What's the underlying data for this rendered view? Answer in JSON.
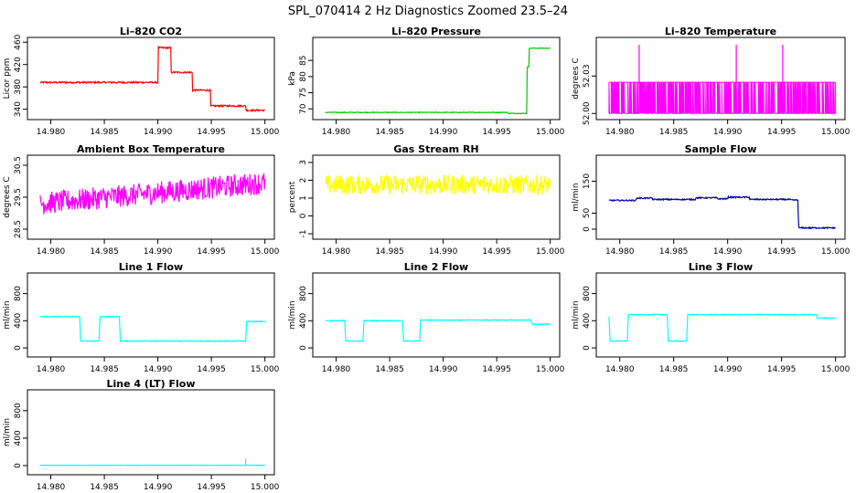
{
  "title": "SPL_070414  2 Hz Diagnostics Zoomed 23.5–24",
  "chart_data": [
    {
      "type": "line",
      "title": "Li–820 CO2",
      "ylabel": "Licor ppm",
      "color": "#ff0000",
      "xlim": [
        14.9785,
        15.0002
      ],
      "xticks": [
        "14.980",
        "14.985",
        "14.990",
        "14.995",
        "15.000"
      ],
      "ylim": [
        328,
        462
      ],
      "yticks": [
        "340",
        "380",
        "420",
        "460"
      ],
      "noise": 1.5,
      "steps": [
        [
          14.979,
          388
        ],
        [
          14.99,
          450
        ],
        [
          14.9912,
          406
        ],
        [
          14.9932,
          374
        ],
        [
          14.9949,
          346
        ],
        [
          14.9982,
          338
        ],
        [
          15.0,
          338
        ]
      ]
    },
    {
      "type": "line",
      "title": "Li–820 Pressure",
      "ylabel": "kPa",
      "color": "#00cc00",
      "xlim": [
        14.9785,
        15.0002
      ],
      "xticks": [
        "14.980",
        "14.985",
        "14.990",
        "14.995",
        "15.000"
      ],
      "ylim": [
        67.8,
        91.0
      ],
      "yticks": [
        "70",
        "75",
        "80",
        "85"
      ],
      "noise": 0.1,
      "steps": [
        [
          14.979,
          68.9
        ],
        [
          14.996,
          68.6
        ],
        [
          14.9978,
          83.0
        ],
        [
          14.998,
          88.8
        ],
        [
          15.0,
          88.8
        ]
      ]
    },
    {
      "type": "line",
      "title": "Li–820 Temperature",
      "ylabel": "degrees C",
      "color": "#ff00ff",
      "xlim": [
        14.9785,
        15.0002
      ],
      "xticks": [
        "14.980",
        "14.985",
        "14.990",
        "14.995",
        "15.000"
      ],
      "ylim": [
        51.998,
        52.058
      ],
      "yticks": [
        "52.00",
        "52.03"
      ],
      "mode": "binary",
      "low": 52.0,
      "high": 52.025,
      "spikes": [
        [
          14.9818,
          52.055
        ],
        [
          14.9908,
          52.055
        ],
        [
          14.9951,
          52.055
        ]
      ],
      "steps": [
        [
          14.979,
          52.0
        ],
        [
          15.0,
          52.0
        ]
      ]
    },
    {
      "type": "line",
      "title": "Ambient Box Temperature",
      "ylabel": "degrees C",
      "color": "#ff00ff",
      "xlim": [
        14.9785,
        15.0002
      ],
      "xticks": [
        "14.980",
        "14.985",
        "14.990",
        "14.995",
        "15.000"
      ],
      "ylim": [
        28.3,
        30.7
      ],
      "yticks": [
        "28.5",
        "29.5",
        "30.5"
      ],
      "noise": 0.35,
      "steps": [
        [
          14.979,
          29.3
        ],
        [
          15.0,
          29.95
        ]
      ]
    },
    {
      "type": "line",
      "title": "Gas Stream RH",
      "ylabel": "percent",
      "color": "#ffff00",
      "xlim": [
        14.9785,
        15.0002
      ],
      "xticks": [
        "14.980",
        "14.985",
        "14.990",
        "14.995",
        "15.000"
      ],
      "ylim": [
        -1.1,
        3.2
      ],
      "yticks": [
        "-1",
        "0",
        "1",
        "2",
        "3"
      ],
      "noise": 0.55,
      "steps": [
        [
          14.979,
          1.75
        ],
        [
          15.0,
          1.75
        ]
      ]
    },
    {
      "type": "line",
      "title": "Sample Flow",
      "ylabel": "ml/min",
      "color": "#0000aa",
      "xlim": [
        14.9785,
        15.0002
      ],
      "xticks": [
        "14.980",
        "14.985",
        "14.990",
        "14.995",
        "15.000"
      ],
      "ylim": [
        -20,
        220
      ],
      "yticks": [
        "0",
        "50",
        "150"
      ],
      "noise": 2,
      "steps": [
        [
          14.979,
          90
        ],
        [
          14.9815,
          97
        ],
        [
          14.983,
          93
        ],
        [
          14.987,
          98
        ],
        [
          14.989,
          95
        ],
        [
          14.99,
          100
        ],
        [
          14.992,
          93
        ],
        [
          14.9958,
          91
        ],
        [
          14.9965,
          85
        ],
        [
          14.9966,
          4
        ],
        [
          15.0,
          3
        ]
      ]
    },
    {
      "type": "line",
      "title": "Line 1 Flow",
      "ylabel": "ml/min",
      "color": "#00ffff",
      "xlim": [
        14.9785,
        15.0002
      ],
      "xticks": [
        "14.980",
        "14.985",
        "14.990",
        "14.995",
        "15.000"
      ],
      "ylim": [
        -80,
        1050
      ],
      "yticks": [
        "0",
        "400",
        "800"
      ],
      "noise": 6,
      "steps": [
        [
          14.979,
          460
        ],
        [
          14.9827,
          440
        ],
        [
          14.9828,
          100
        ],
        [
          14.9845,
          100
        ],
        [
          14.9846,
          460
        ],
        [
          14.9864,
          450
        ],
        [
          14.9865,
          100
        ],
        [
          14.9982,
          100
        ],
        [
          14.9983,
          390
        ],
        [
          15.0,
          390
        ]
      ]
    },
    {
      "type": "line",
      "title": "Line 2 Flow",
      "ylabel": "ml/min",
      "color": "#00ffff",
      "xlim": [
        14.9785,
        15.0002
      ],
      "xticks": [
        "14.980",
        "14.985",
        "14.990",
        "14.995",
        "15.000"
      ],
      "ylim": [
        -80,
        1050
      ],
      "yticks": [
        "0",
        "400",
        "800"
      ],
      "noise": 6,
      "steps": [
        [
          14.979,
          400
        ],
        [
          14.9808,
          400
        ],
        [
          14.9809,
          100
        ],
        [
          14.9825,
          100
        ],
        [
          14.9826,
          400
        ],
        [
          14.9862,
          400
        ],
        [
          14.9863,
          100
        ],
        [
          14.9878,
          100
        ],
        [
          14.9879,
          410
        ],
        [
          14.9982,
          400
        ],
        [
          14.9983,
          350
        ],
        [
          15.0,
          350
        ]
      ]
    },
    {
      "type": "line",
      "title": "Line 3 Flow",
      "ylabel": "ml/min",
      "color": "#00ffff",
      "xlim": [
        14.9785,
        15.0002
      ],
      "xticks": [
        "14.980",
        "14.985",
        "14.990",
        "14.995",
        "15.000"
      ],
      "ylim": [
        -80,
        1050
      ],
      "yticks": [
        "0",
        "400",
        "800"
      ],
      "noise": 6,
      "steps": [
        [
          14.979,
          460
        ],
        [
          14.9791,
          100
        ],
        [
          14.9807,
          100
        ],
        [
          14.9808,
          490
        ],
        [
          14.9844,
          480
        ],
        [
          14.9845,
          100
        ],
        [
          14.9862,
          100
        ],
        [
          14.9863,
          490
        ],
        [
          14.9982,
          480
        ],
        [
          14.9983,
          440
        ],
        [
          15.0,
          440
        ]
      ]
    },
    {
      "type": "line",
      "title": "Line 4 (LT) Flow",
      "ylabel": "ml/min",
      "color": "#00ffff",
      "xlim": [
        14.9785,
        15.0002
      ],
      "xticks": [
        "14.980",
        "14.985",
        "14.990",
        "14.995",
        "15.000"
      ],
      "ylim": [
        -80,
        1050
      ],
      "yticks": [
        "0",
        "400",
        "800"
      ],
      "noise": 2,
      "spikes": [
        [
          14.9982,
          100
        ]
      ],
      "steps": [
        [
          14.979,
          5
        ],
        [
          15.0,
          5
        ]
      ]
    }
  ]
}
